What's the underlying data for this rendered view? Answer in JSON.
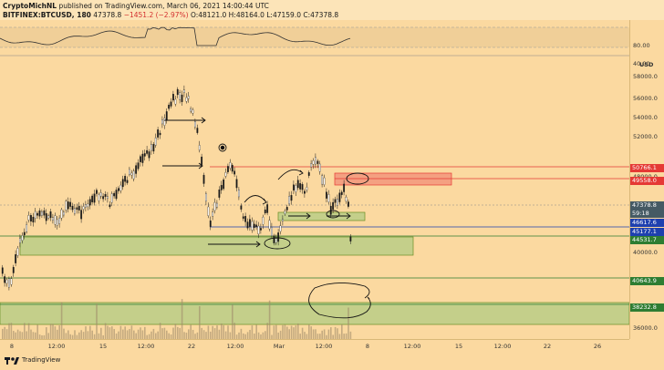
{
  "header": {
    "author": "CryptoMichNL",
    "published": "published on TradingView.com, March 06, 2021 14:00:44 UTC",
    "symbol": "BITFINEX:BTCUSD, 180",
    "last": "47378.8",
    "change": "−1451.2 (−2.97%)",
    "ohlc_o": "O:48121.0",
    "ohlc_h": "H:48164.0",
    "ohlc_l": "L:47159.0",
    "ohlc_c": "C:47378.8"
  },
  "rsi_axis": {
    "upper": "80.00",
    "lower": "40.00"
  },
  "price_axis": {
    "unit": "USD",
    "ticks": [
      "58000.0",
      "56000.0",
      "54000.0",
      "52000.0",
      "48000.0",
      "42000.0",
      "40000.0",
      "36000.0"
    ]
  },
  "price_tags": [
    {
      "value": "50766.1",
      "color": "#e53935",
      "top_offset": 0
    },
    {
      "value": "49558.0",
      "color": "#e53935"
    },
    {
      "value": "47378.8",
      "color": "#455a64"
    },
    {
      "value": "59:18",
      "color": "#455a64"
    },
    {
      "value": "46617.6",
      "color": "#1e40af"
    },
    {
      "value": "45177.1",
      "color": "#1e40af"
    },
    {
      "value": "44531.7",
      "color": "#2e7d32"
    },
    {
      "value": "40643.9",
      "color": "#2e7d32"
    },
    {
      "value": "38232.8",
      "color": "#2e7d32"
    }
  ],
  "time_axis": [
    "8",
    "12:00",
    "15",
    "12:00",
    "22",
    "12:00",
    "Mar",
    "12:00",
    "8",
    "12:00",
    "15",
    "12:00",
    "22",
    "26"
  ],
  "footer": {
    "brand": "TradingView"
  },
  "colors": {
    "background": "#fbd9a0",
    "candle": "#1a1a1a",
    "support": "#9bbf3a",
    "resistance": "#f06b5a",
    "blue_line": "#1e40af"
  }
}
